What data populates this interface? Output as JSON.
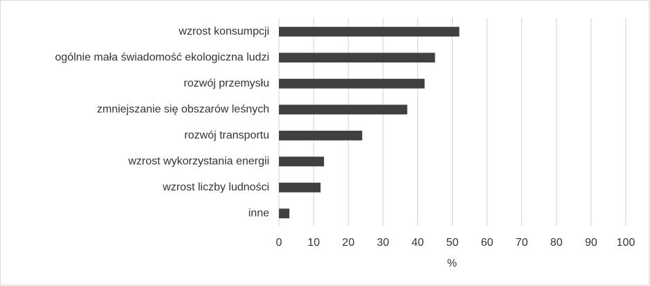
{
  "chart_data": {
    "type": "bar",
    "orientation": "horizontal",
    "categories": [
      "wzrost konsumpcji",
      "ogólnie mała świadomość ekologiczna ludzi",
      "rozwój przemysłu",
      "zmniejszanie się obszarów leśnych",
      "rozwój transportu",
      "wzrost wykorzystania energii",
      "wzrost liczby ludności",
      "inne"
    ],
    "values": [
      52,
      45,
      42,
      37,
      24,
      13,
      12,
      3
    ],
    "color": "#404040",
    "x_label": "%",
    "xlim": [
      0,
      100
    ],
    "xticks": [
      0,
      10,
      20,
      30,
      40,
      50,
      60,
      70,
      80,
      90,
      100
    ],
    "grid": true
  }
}
